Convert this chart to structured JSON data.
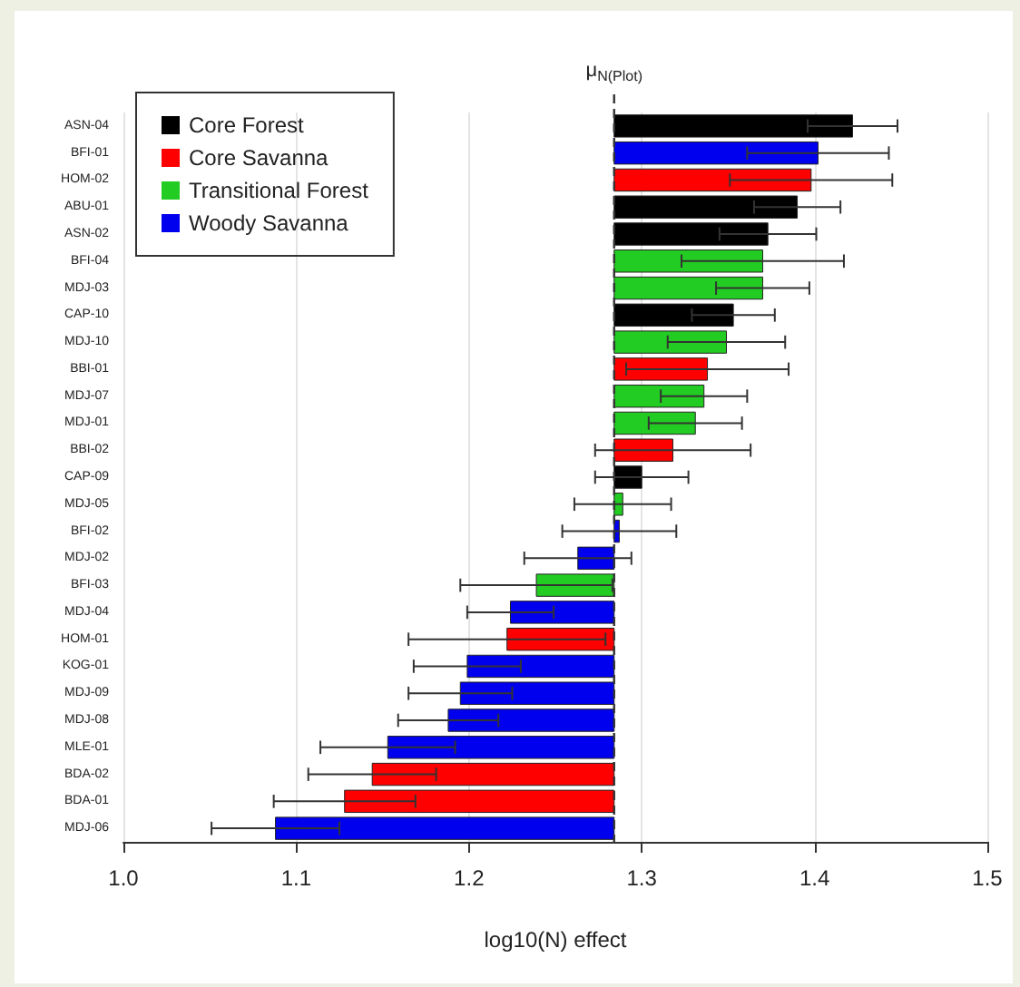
{
  "chart_data": {
    "type": "bar",
    "orientation": "horizontal",
    "xlabel": "log10(N) effect",
    "categories": [
      "ASN-04",
      "BFI-01",
      "HOM-02",
      "ABU-01",
      "ASN-02",
      "BFI-04",
      "MDJ-03",
      "CAP-10",
      "MDJ-10",
      "BBI-01",
      "MDJ-07",
      "MDJ-01",
      "BBI-02",
      "CAP-09",
      "MDJ-05",
      "BFI-02",
      "MDJ-02",
      "BFI-03",
      "MDJ-04",
      "HOM-01",
      "KOG-01",
      "MDJ-09",
      "MDJ-08",
      "MLE-01",
      "BDA-02",
      "BDA-01",
      "MDJ-06"
    ],
    "series": [
      {
        "name": "Core Forest",
        "color": "#000000",
        "values": [
          0.138,
          null,
          null,
          0.106,
          0.089,
          null,
          null,
          0.069,
          null,
          null,
          null,
          null,
          null,
          0.016,
          null,
          null,
          null,
          null,
          null,
          null,
          null,
          null,
          null,
          null,
          null,
          null,
          null
        ],
        "base": [
          1.284,
          null,
          null,
          1.284,
          1.284,
          null,
          null,
          1.284,
          null,
          null,
          null,
          null,
          null,
          1.284,
          null,
          null,
          null,
          null,
          null,
          null,
          null,
          null,
          null,
          null,
          null,
          null,
          null
        ],
        "errors": [
          0.026,
          null,
          null,
          0.025,
          0.028,
          null,
          null,
          0.024,
          null,
          null,
          null,
          null,
          null,
          0.027,
          null,
          null,
          null,
          null,
          null,
          null,
          null,
          null,
          null,
          null,
          null,
          null,
          null
        ]
      },
      {
        "name": "Core Savanna",
        "color": "#ff0000",
        "values": [
          null,
          null,
          0.114,
          null,
          null,
          null,
          null,
          null,
          null,
          0.054,
          null,
          null,
          0.034,
          null,
          null,
          null,
          null,
          null,
          null,
          -0.062,
          null,
          null,
          null,
          null,
          -0.14,
          -0.156,
          null
        ],
        "base": [
          null,
          null,
          1.284,
          null,
          null,
          null,
          null,
          null,
          null,
          1.284,
          null,
          null,
          1.284,
          null,
          null,
          null,
          null,
          null,
          null,
          1.284,
          null,
          null,
          null,
          null,
          1.284,
          1.284,
          null
        ],
        "errors": [
          null,
          null,
          0.047,
          null,
          null,
          null,
          null,
          null,
          null,
          0.047,
          null,
          null,
          0.045,
          null,
          null,
          null,
          null,
          null,
          null,
          0.057,
          null,
          null,
          null,
          null,
          0.037,
          0.041,
          null
        ]
      },
      {
        "name": "Transitional Forest",
        "color": "#22cc22",
        "values": [
          null,
          null,
          null,
          null,
          null,
          0.086,
          0.086,
          null,
          0.065,
          null,
          0.052,
          0.047,
          null,
          null,
          0.005,
          null,
          null,
          -0.045,
          null,
          null,
          null,
          null,
          null,
          null,
          null,
          null,
          null
        ],
        "base": [
          null,
          null,
          null,
          null,
          null,
          1.284,
          1.284,
          null,
          1.284,
          null,
          1.284,
          1.284,
          null,
          null,
          1.284,
          null,
          null,
          1.284,
          null,
          null,
          null,
          null,
          null,
          null,
          null,
          null,
          null
        ],
        "errors": [
          null,
          null,
          null,
          null,
          null,
          0.047,
          0.027,
          null,
          0.034,
          null,
          0.025,
          0.027,
          null,
          null,
          0.028,
          null,
          null,
          0.044,
          null,
          null,
          null,
          null,
          null,
          null,
          null,
          null,
          null
        ]
      },
      {
        "name": "Woody Savanna",
        "color": "#0000ee",
        "values": [
          null,
          0.118,
          null,
          null,
          null,
          null,
          null,
          null,
          null,
          null,
          null,
          null,
          null,
          null,
          null,
          0.003,
          -0.021,
          null,
          -0.06,
          null,
          -0.085,
          -0.089,
          -0.096,
          -0.131,
          null,
          null,
          -0.196
        ],
        "base": [
          null,
          1.284,
          null,
          null,
          null,
          null,
          null,
          null,
          null,
          null,
          null,
          null,
          null,
          null,
          null,
          1.284,
          1.284,
          null,
          1.284,
          null,
          1.284,
          1.284,
          1.284,
          1.284,
          null,
          null,
          1.284
        ],
        "errors": [
          null,
          0.041,
          null,
          null,
          null,
          null,
          null,
          null,
          null,
          null,
          null,
          null,
          null,
          null,
          null,
          0.033,
          0.031,
          null,
          0.025,
          null,
          0.031,
          0.03,
          0.029,
          0.039,
          null,
          null,
          0.037
        ]
      }
    ],
    "xlim": [
      1.0,
      1.5
    ],
    "xticks": [
      {
        "value": 1.0,
        "label": "1.0"
      },
      1.1,
      1.2,
      1.3,
      1.4,
      {
        "value": 1.5,
        "label": "1.5"
      }
    ],
    "ref_lines": [
      {
        "axis": "x",
        "value": 1.284,
        "label": "μ$_{N(Plot)}$",
        "line_style": "dashed",
        "color": "#333333"
      }
    ],
    "grid": "x",
    "legend": "top left"
  }
}
